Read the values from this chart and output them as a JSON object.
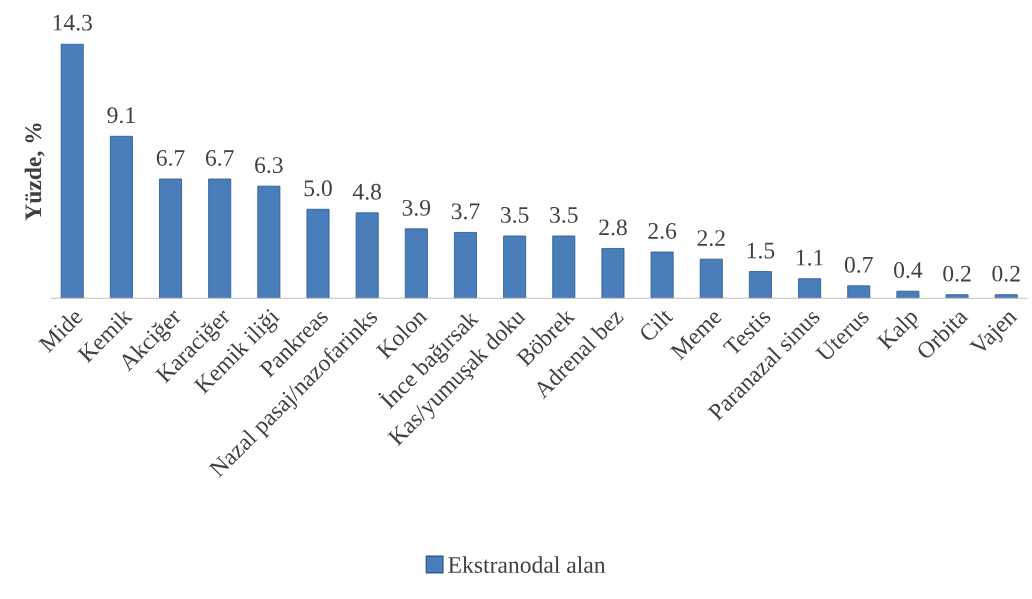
{
  "chart_data": {
    "type": "bar",
    "ylabel": "Yüzde, %",
    "categories": [
      "Mide",
      "Kemik",
      "Akciğer",
      "Karaciğer",
      "Kemik iliği",
      "Pankreas",
      "Nazal pasaj/nazofarinks",
      "Kolon",
      "İnce bağırsak",
      "Kas/yumuşak doku",
      "Böbrek",
      "Adrenal bez",
      "Cilt",
      "Meme",
      "Testis",
      "Paranazal sinus",
      "Uterus",
      "Kalp",
      "Orbita",
      "Vajen"
    ],
    "series": [
      {
        "name": "Ekstranodal alan",
        "color": "#4a7ebb",
        "values": [
          14.3,
          9.1,
          6.7,
          6.7,
          6.3,
          5.0,
          4.8,
          3.9,
          3.7,
          3.5,
          3.5,
          2.8,
          2.6,
          2.2,
          1.5,
          1.1,
          0.7,
          0.4,
          0.2,
          0.2
        ],
        "value_labels": [
          "14.3",
          "9.1",
          "6.7",
          "6.7",
          "6.3",
          "5.0",
          "4.8",
          "3.9",
          "3.7",
          "3.5",
          "3.5",
          "2.8",
          "2.6",
          "2.2",
          "1.5",
          "1.1",
          "0.7",
          "0.4",
          "0.2",
          "0.2"
        ]
      }
    ],
    "legend": "bottom",
    "grid": false
  }
}
